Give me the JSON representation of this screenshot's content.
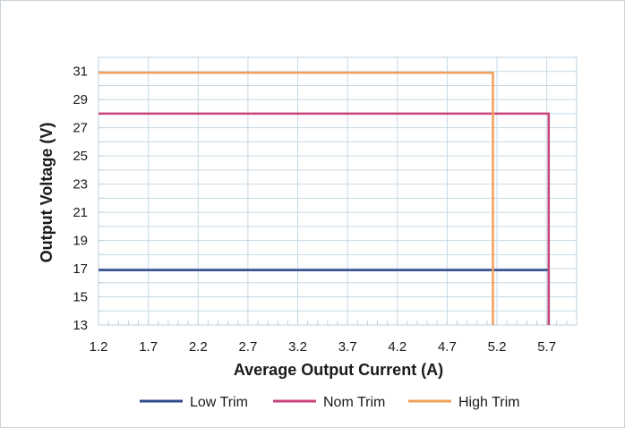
{
  "chart_data": {
    "type": "line",
    "title": "",
    "xlabel": "Average Output Current (A)",
    "ylabel": "Output Voltage (V)",
    "xlim": [
      1.2,
      6.0
    ],
    "ylim": [
      13,
      32
    ],
    "x_ticks": [
      1.2,
      1.7,
      2.2,
      2.7,
      3.2,
      3.7,
      4.2,
      4.7,
      5.2,
      5.7
    ],
    "x_tick_labels": [
      "1.2",
      "1.7",
      "2.2",
      "2.7",
      "3.2",
      "3.7",
      "4.2",
      "4.7",
      "5.2",
      "5.7"
    ],
    "y_ticks": [
      13,
      15,
      17,
      19,
      21,
      23,
      25,
      27,
      29,
      31
    ],
    "y_tick_labels": [
      "13",
      "15",
      "17",
      "19",
      "21",
      "23",
      "25",
      "27",
      "29",
      "31"
    ],
    "grid": true,
    "legend_position": "bottom",
    "series": [
      {
        "name": "Low Trim",
        "color": "#2e4a8c",
        "x": [
          1.2,
          5.72,
          5.72
        ],
        "y": [
          16.9,
          16.9,
          13
        ]
      },
      {
        "name": "Nom Trim",
        "color": "#c8457a",
        "x": [
          1.2,
          5.72,
          5.72
        ],
        "y": [
          28.0,
          28.0,
          13
        ]
      },
      {
        "name": "High Trim",
        "color": "#f0a05a",
        "x": [
          1.2,
          5.16,
          5.16
        ],
        "y": [
          30.9,
          30.9,
          13
        ]
      }
    ]
  }
}
